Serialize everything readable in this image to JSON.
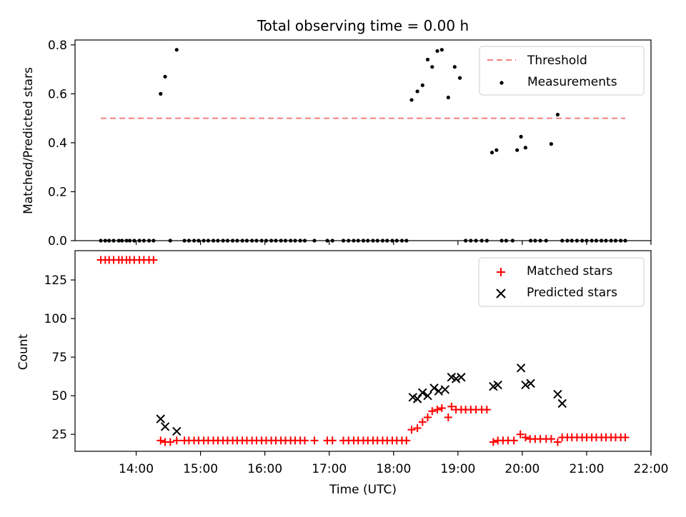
{
  "chart_data": [
    {
      "type": "scatter",
      "title": "Total observing time = 0.00 h",
      "ylabel": "Matched/Predicted stars",
      "xlim": [
        13.05,
        22.0
      ],
      "ylim": [
        0,
        0.82
      ],
      "yticks": [
        0.0,
        0.2,
        0.4,
        0.6,
        0.8
      ],
      "ytick_labels": [
        "0.0",
        "0.2",
        "0.4",
        "0.6",
        "0.8"
      ],
      "legend": {
        "placement": "top-right",
        "entries": [
          "Threshold",
          "Measurements"
        ]
      },
      "threshold": {
        "name": "Threshold",
        "value": 0.5,
        "x_start": 13.45,
        "x_end": 21.6,
        "color": "#f08080",
        "style": "dashed"
      },
      "series": [
        {
          "name": "Measurements",
          "marker": "dot",
          "color": "#000000",
          "x": [
            13.45,
            13.52,
            13.58,
            13.65,
            13.73,
            13.78,
            13.85,
            13.9,
            13.97,
            14.05,
            14.12,
            14.2,
            14.27,
            14.38,
            14.45,
            14.53,
            14.63,
            14.75,
            14.82,
            14.9,
            14.97,
            15.05,
            15.12,
            15.2,
            15.27,
            15.35,
            15.42,
            15.5,
            15.57,
            15.65,
            15.72,
            15.8,
            15.87,
            15.95,
            16.02,
            16.1,
            16.17,
            16.25,
            16.32,
            16.4,
            16.47,
            16.55,
            16.62,
            16.77,
            16.97,
            17.05,
            17.22,
            17.3,
            17.38,
            17.45,
            17.53,
            17.6,
            17.68,
            17.75,
            17.83,
            17.9,
            17.98,
            18.05,
            18.13,
            18.2,
            18.28,
            18.37,
            18.45,
            18.53,
            18.6,
            18.68,
            18.75,
            18.85,
            18.95,
            19.03,
            19.12,
            19.2,
            19.28,
            19.37,
            19.45,
            19.53,
            19.6,
            19.68,
            19.75,
            19.85,
            19.92,
            19.98,
            20.05,
            20.13,
            20.2,
            20.28,
            20.37,
            20.45,
            20.55,
            20.62,
            20.7,
            20.77,
            20.85,
            20.93,
            21.0,
            21.08,
            21.15,
            21.23,
            21.3,
            21.38,
            21.45,
            21.53,
            21.6
          ],
          "y": [
            0,
            0,
            0,
            0,
            0,
            0,
            0,
            0,
            0,
            0,
            0,
            0,
            0,
            0.6,
            0.67,
            0,
            0.78,
            0,
            0,
            0,
            0,
            0,
            0,
            0,
            0,
            0,
            0,
            0,
            0,
            0,
            0,
            0,
            0,
            0,
            0,
            0,
            0,
            0,
            0,
            0,
            0,
            0,
            0,
            0,
            0,
            0,
            0,
            0,
            0,
            0,
            0,
            0,
            0,
            0,
            0,
            0,
            0,
            0,
            0,
            0,
            0.575,
            0.61,
            0.635,
            0.74,
            0.71,
            0.775,
            0.78,
            0.585,
            0.71,
            0.665,
            0,
            0,
            0,
            0,
            0,
            0.36,
            0.37,
            0,
            0,
            0,
            0.37,
            0.425,
            0.38,
            0,
            0,
            0,
            0,
            0.395,
            0.515,
            0,
            0,
            0,
            0,
            0,
            0,
            0,
            0,
            0,
            0,
            0,
            0,
            0,
            0
          ]
        }
      ]
    },
    {
      "type": "scatter",
      "xlabel": "Time (UTC)",
      "ylabel": "Count",
      "xlim": [
        13.05,
        22.0
      ],
      "ylim": [
        14,
        144
      ],
      "xticks": [
        14,
        15,
        16,
        17,
        18,
        19,
        20,
        21,
        22
      ],
      "xtick_labels": [
        "14:00",
        "15:00",
        "16:00",
        "17:00",
        "18:00",
        "19:00",
        "20:00",
        "21:00",
        "22:00"
      ],
      "yticks": [
        25,
        50,
        75,
        100,
        125
      ],
      "ytick_labels": [
        "25",
        "50",
        "75",
        "100",
        "125"
      ],
      "legend": {
        "placement": "top-right",
        "entries": [
          "Matched stars",
          "Predicted stars"
        ]
      },
      "series": [
        {
          "name": "Matched stars",
          "marker": "plus",
          "color": "#ff0000",
          "x": [
            13.45,
            13.52,
            13.58,
            13.65,
            13.73,
            13.78,
            13.85,
            13.9,
            13.97,
            14.05,
            14.12,
            14.2,
            14.27,
            14.38,
            14.45,
            14.53,
            14.63,
            14.75,
            14.82,
            14.9,
            14.97,
            15.05,
            15.12,
            15.2,
            15.27,
            15.35,
            15.42,
            15.5,
            15.57,
            15.65,
            15.72,
            15.8,
            15.87,
            15.95,
            16.02,
            16.1,
            16.17,
            16.25,
            16.32,
            16.4,
            16.47,
            16.55,
            16.62,
            16.77,
            16.97,
            17.05,
            17.22,
            17.3,
            17.38,
            17.45,
            17.53,
            17.6,
            17.68,
            17.75,
            17.83,
            17.9,
            17.98,
            18.05,
            18.13,
            18.2,
            18.28,
            18.37,
            18.45,
            18.53,
            18.6,
            18.68,
            18.75,
            18.85,
            18.9,
            18.97,
            19.05,
            19.12,
            19.2,
            19.28,
            19.37,
            19.45,
            19.55,
            19.62,
            19.7,
            19.78,
            19.87,
            19.97,
            20.05,
            20.12,
            20.2,
            20.28,
            20.37,
            20.45,
            20.55,
            20.62,
            20.7,
            20.77,
            20.85,
            20.93,
            21.0,
            21.08,
            21.15,
            21.23,
            21.3,
            21.38,
            21.45,
            21.53,
            21.6
          ],
          "y": [
            138,
            138,
            138,
            138,
            138,
            138,
            138,
            138,
            138,
            138,
            138,
            138,
            138,
            21,
            20,
            20,
            21,
            21,
            21,
            21,
            21,
            21,
            21,
            21,
            21,
            21,
            21,
            21,
            21,
            21,
            21,
            21,
            21,
            21,
            21,
            21,
            21,
            21,
            21,
            21,
            21,
            21,
            21,
            21,
            21,
            21,
            21,
            21,
            21,
            21,
            21,
            21,
            21,
            21,
            21,
            21,
            21,
            21,
            21,
            21,
            28,
            29,
            33,
            36,
            40,
            41,
            42,
            36,
            43,
            41,
            41,
            41,
            41,
            41,
            41,
            41,
            20,
            21,
            21,
            21,
            21,
            25,
            23,
            22,
            22,
            22,
            22,
            22,
            20,
            23,
            23,
            23,
            23,
            23,
            23,
            23,
            23,
            23,
            23,
            23,
            23,
            23,
            23
          ]
        },
        {
          "name": "Predicted stars",
          "marker": "x",
          "color": "#000000",
          "x": [
            14.38,
            14.45,
            14.63,
            18.3,
            18.37,
            18.45,
            18.53,
            18.63,
            18.7,
            18.8,
            18.9,
            18.97,
            19.05,
            19.55,
            19.62,
            19.98,
            20.05,
            20.13,
            20.55,
            20.62
          ],
          "y": [
            35,
            30,
            27,
            49,
            48,
            52,
            50,
            55,
            53,
            54,
            62,
            61,
            62,
            56,
            57,
            68,
            57,
            58,
            51,
            45
          ]
        }
      ]
    }
  ]
}
